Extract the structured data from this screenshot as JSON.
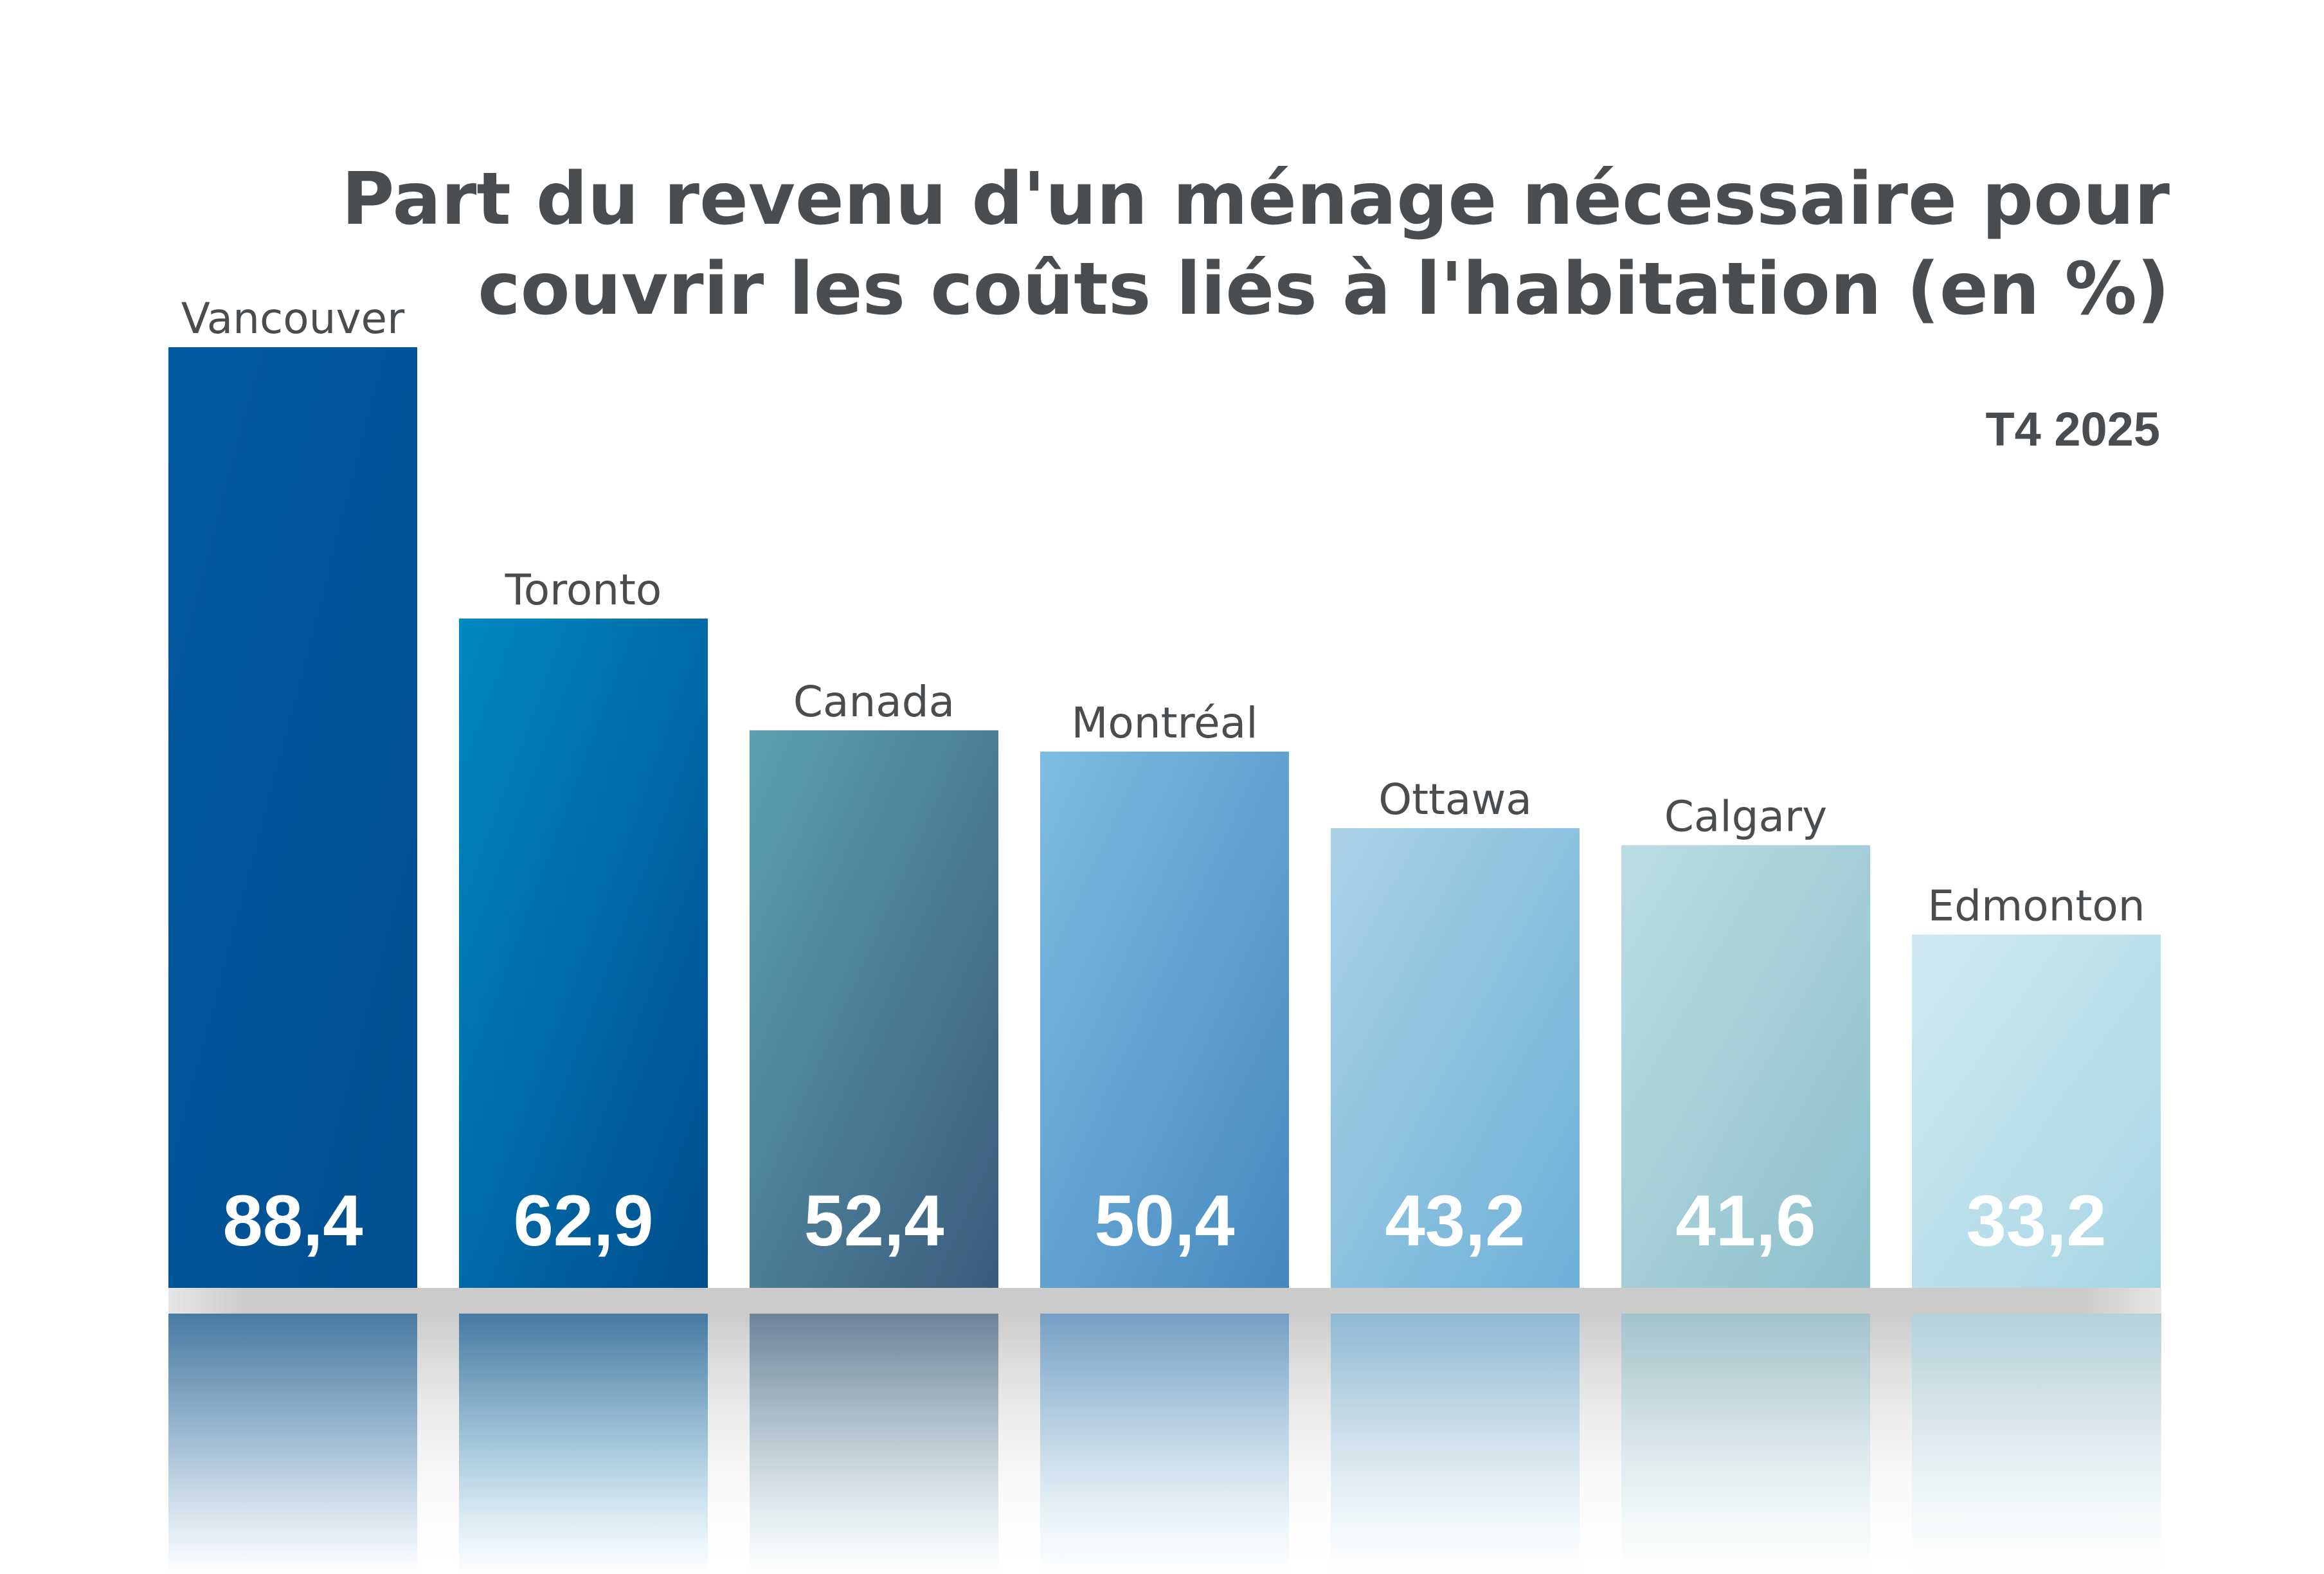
{
  "chart_data": {
    "type": "bar",
    "title_lines": [
      "Part du revenu d'un ménage nécessaire pour",
      "couvrir les coûts liés à l'habitation (en %)"
    ],
    "subtitle": "T4 2025",
    "categories": [
      "Vancouver",
      "Toronto",
      "Canada",
      "Montréal",
      "Ottawa",
      "Calgary",
      "Edmonton"
    ],
    "values": [
      88.4,
      62.9,
      52.4,
      50.4,
      43.2,
      41.6,
      33.2
    ],
    "value_labels": [
      "88,4",
      "62,9",
      "52,4",
      "50,4",
      "43,2",
      "41,6",
      "33,2"
    ],
    "colors": [
      [
        "#0358a0",
        "#01508f"
      ],
      [
        "#0088c2",
        "#004d8c"
      ],
      [
        "#5da0b2",
        "#3a5c7e"
      ],
      [
        "#7dbde0",
        "#4588c0"
      ],
      [
        "#aad2e7",
        "#6db0d8"
      ],
      [
        "#bcdde4",
        "#8bbfcb"
      ],
      [
        "#d0e9f1",
        "#a6d6e5"
      ]
    ],
    "xlabel": "",
    "ylabel": "",
    "ylim": [
      0,
      88.4
    ],
    "grid": false,
    "legend": "none"
  }
}
